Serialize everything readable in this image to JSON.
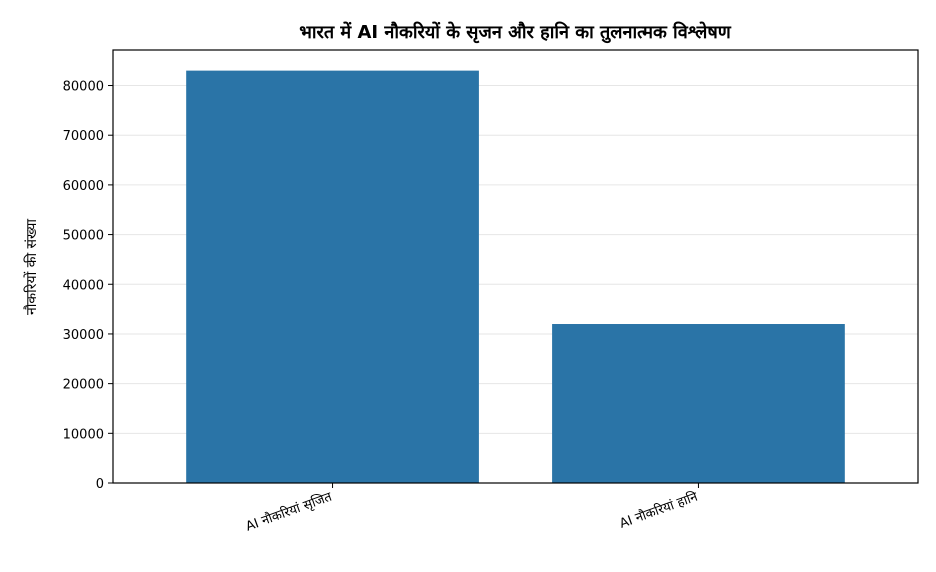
{
  "chart_data": {
    "type": "bar",
    "title": "भारत में AI नौकरियों के सृजन और हानि का तुलनात्मक विश्लेषण",
    "xlabel": "",
    "ylabel": "नौकरियों की संख्या",
    "categories": [
      "AI नौकरियां सृजित",
      "AI नौकरियां हानि"
    ],
    "values": [
      83000,
      32000
    ],
    "ylim": [
      0,
      87150
    ],
    "yticks": [
      0,
      10000,
      20000,
      30000,
      40000,
      50000,
      60000,
      70000,
      80000
    ],
    "ytick_labels": [
      "0",
      "10000",
      "20000",
      "30000",
      "40000",
      "50000",
      "60000",
      "70000",
      "80000"
    ],
    "grid": "horizontal",
    "bar_color": "#2a74a7"
  }
}
